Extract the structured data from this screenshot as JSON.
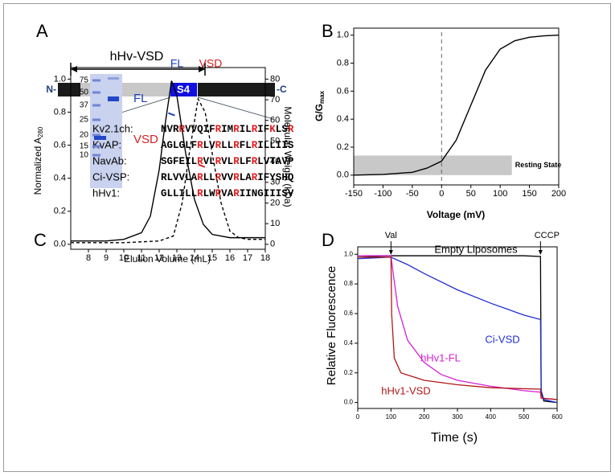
{
  "panel_a": {
    "label": "A",
    "region_label": "hHv-VSD",
    "n_terminus": "N-",
    "c_terminus": "-C",
    "segment_label": "S4",
    "highlight_color": "#e31a1c",
    "sequences": [
      {
        "name": "Kv2.1ch:",
        "sequence": "NVRRVVQIFRIMRILRIFKLSR",
        "highlight_positions": [
          3,
          9,
          12,
          15,
          18,
          21
        ]
      },
      {
        "name": "KvAP:",
        "sequence": "AGLGLFRLVRLLRFLRILLIIS",
        "highlight_positions": [
          6,
          9,
          12,
          15
        ]
      },
      {
        "name": "NavAb:",
        "sequence": "SGFEILRVLRVLRLFRLVTAVP",
        "highlight_positions": [
          6,
          9,
          12,
          15
        ]
      },
      {
        "name": "Ci-VSP:",
        "sequence": "RLVVLARLLRVVRLARIFYSHQ",
        "highlight_positions": [
          6,
          9,
          12,
          15
        ]
      },
      {
        "name": "hHv1:",
        "sequence": "GLLILLRLWRVARIINGIIISV",
        "highlight_positions": [
          6,
          9,
          12
        ]
      }
    ]
  },
  "chart_data": [
    {
      "type": "line",
      "panel_label": "B",
      "xlabel": "Voltage (mV)",
      "ylabel": "G/G",
      "ylabel_sub": "max",
      "x": [
        -150,
        -100,
        -50,
        -25,
        0,
        25,
        50,
        75,
        100,
        125,
        150,
        175,
        200
      ],
      "series": [
        {
          "color": "#000000",
          "values": [
            0,
            0.005,
            0.02,
            0.05,
            0.1,
            0.25,
            0.5,
            0.75,
            0.9,
            0.96,
            0.985,
            0.995,
            1.0
          ]
        }
      ],
      "xlim": [
        -150,
        200
      ],
      "ylim": [
        -0.07,
        1.05
      ],
      "xticks": [
        -150,
        -100,
        -50,
        0,
        50,
        100,
        150,
        200
      ],
      "yticks": [
        {
          "value": 0,
          "label": "0.0"
        },
        {
          "value": 0.2,
          "label": "0.2"
        },
        {
          "value": 0.4,
          "label": "0.4"
        },
        {
          "value": 0.6,
          "label": "0.6"
        },
        {
          "value": 0.8,
          "label": "0.8"
        },
        {
          "value": 1,
          "label": "1.0"
        }
      ],
      "vline": 0,
      "shaded_region": {
        "x": [
          -150,
          120
        ],
        "y": [
          0,
          0.14
        ],
        "color": "#c8c8c8",
        "label": "Resting State"
      }
    },
    {
      "type": "line",
      "panel_label": "C",
      "xlabel": "Elution Volume (mL)",
      "ylabel": "Normalized A",
      "ylabel_sub": "280",
      "y2label": "Molecular Weight (kDa)",
      "series": [
        {
          "name": "FL",
          "color": "#000000",
          "label_color": "#1f3fbf",
          "dash": false,
          "x": [
            7,
            9,
            10,
            11,
            11.5,
            12,
            12.3,
            12.7,
            13,
            13.5,
            14,
            14.5,
            15,
            16,
            17,
            18
          ],
          "values": [
            0.02,
            0.02,
            0.03,
            0.07,
            0.17,
            0.45,
            0.7,
            0.99,
            0.9,
            0.55,
            0.27,
            0.12,
            0.06,
            0.04,
            0.04,
            0.04
          ]
        },
        {
          "name": "VSD",
          "color": "#000000",
          "label_color": "#d62020",
          "dash": true,
          "x": [
            7,
            10,
            12,
            12.8,
            13.3,
            13.7,
            14.2,
            14.6,
            15,
            15.5,
            16,
            16.5,
            17,
            18
          ],
          "values": [
            0.01,
            0.01,
            0.02,
            0.05,
            0.25,
            0.55,
            0.88,
            0.8,
            0.55,
            0.25,
            0.08,
            0.04,
            0.03,
            0.03
          ]
        }
      ],
      "mw_points": [
        {
          "x": 12.7,
          "y": 63,
          "color": "#1f3fbf"
        },
        {
          "x": 14.4,
          "y": 38,
          "color": "#d62020"
        }
      ],
      "xlim": [
        7,
        18
      ],
      "ylim": [
        -0.03,
        1.07
      ],
      "y2lim": [
        -2.4,
        85.6
      ],
      "xticks": [
        8,
        9,
        10,
        11,
        12,
        13,
        14,
        15,
        16,
        17,
        18
      ],
      "yticks": [
        {
          "value": 0,
          "label": "0.0"
        },
        {
          "value": 0.2,
          "label": "0.2"
        },
        {
          "value": 0.4,
          "label": "0.4"
        },
        {
          "value": 0.6,
          "label": "0.6"
        },
        {
          "value": 0.8,
          "label": "0.8"
        },
        {
          "value": 1,
          "label": "1.0"
        }
      ],
      "y2ticks": [
        0,
        10,
        20,
        30,
        40,
        50,
        60,
        70,
        80
      ],
      "gel": {
        "ladder": [
          "75",
          "50",
          "37",
          "25",
          "20",
          "15",
          "10"
        ],
        "lanes": [
          "FL",
          "VSD"
        ],
        "lane_colors": [
          "#1f3fbf",
          "#d62020"
        ]
      }
    },
    {
      "type": "line",
      "panel_label": "D",
      "xlabel": "Time (s)",
      "ylabel": "Relative Fluorescence",
      "series": [
        {
          "name": "Empty Liposomes",
          "color": "#000000",
          "x": [
            0,
            100,
            200,
            300,
            400,
            500,
            550,
            552,
            560,
            600
          ],
          "values": [
            0.98,
            0.99,
            0.99,
            0.99,
            0.99,
            0.99,
            0.985,
            0.07,
            0.01,
            0.0
          ]
        },
        {
          "name": "Ci-VSD",
          "color": "#1f2fd0",
          "x": [
            0,
            100,
            150,
            200,
            300,
            400,
            500,
            550,
            552,
            560,
            600
          ],
          "values": [
            0.97,
            0.98,
            0.93,
            0.87,
            0.76,
            0.67,
            0.59,
            0.56,
            0.08,
            0.02,
            0.0
          ]
        },
        {
          "name": "hHv1-FL",
          "color": "#d61fd6",
          "x": [
            0,
            100,
            105,
            120,
            150,
            200,
            250,
            300,
            400,
            500,
            550,
            552,
            600
          ],
          "values": [
            0.99,
            0.99,
            0.9,
            0.65,
            0.42,
            0.27,
            0.19,
            0.15,
            0.11,
            0.08,
            0.07,
            0.03,
            0.02
          ]
        },
        {
          "name": "hHv1-VSD",
          "color": "#b01818",
          "x": [
            0,
            100,
            102,
            110,
            130,
            200,
            300,
            400,
            550,
            552,
            600
          ],
          "values": [
            0.98,
            0.98,
            0.6,
            0.3,
            0.2,
            0.15,
            0.12,
            0.1,
            0.09,
            0.03,
            0.02
          ]
        }
      ],
      "annotations": [
        {
          "text": "Val",
          "x": 100
        },
        {
          "text": "CCCP",
          "x": 550
        }
      ],
      "xlim": [
        0,
        600
      ],
      "ylim": [
        -0.04,
        1.05
      ],
      "xticks": [
        0,
        100,
        200,
        300,
        400,
        500,
        600
      ],
      "yticks": [
        {
          "value": 0,
          "label": "0.0"
        },
        {
          "value": 0.2,
          "label": "0.2"
        },
        {
          "value": 0.4,
          "label": "0.4"
        },
        {
          "value": 0.6,
          "label": "0.6"
        },
        {
          "value": 0.8,
          "label": "0.8"
        },
        {
          "value": 1,
          "label": "1.0"
        }
      ]
    }
  ]
}
